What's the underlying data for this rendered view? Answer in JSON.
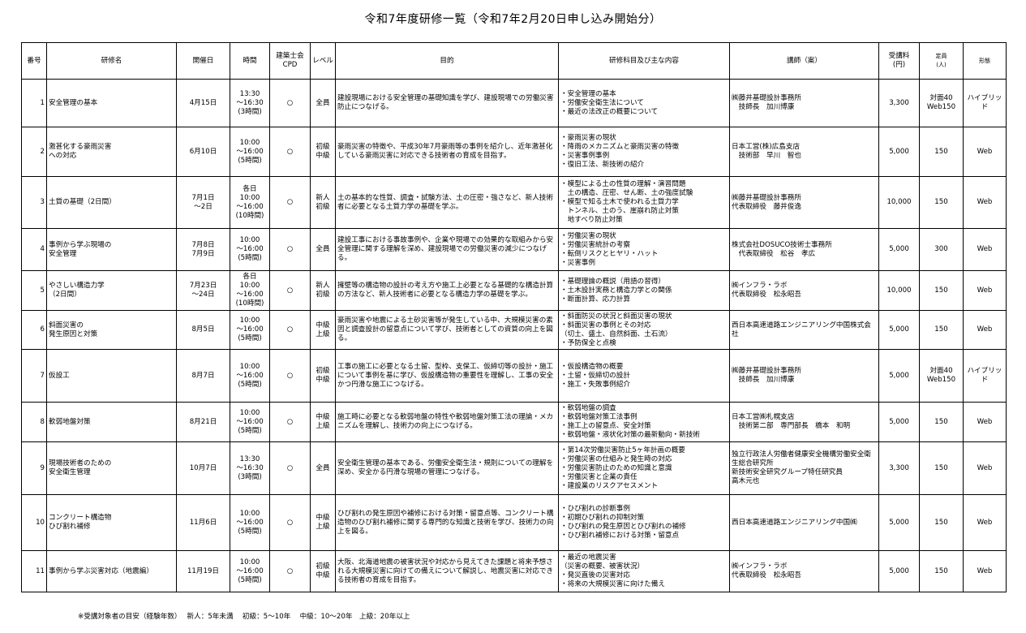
{
  "title": "令和7年度研修一覧（令和7年2月20日申し込み開始分）",
  "headers": {
    "no": "番号",
    "name": "研修名",
    "date": "開催日",
    "time": "時間",
    "cpd": "建築士会\nCPD",
    "level": "レベル",
    "purpose": "目的",
    "content": "研修科目及び主な内容",
    "lecturer": "講師（案）",
    "fee": "受講料\n(円)",
    "capacity": "定員\n(人)",
    "format": "形態"
  },
  "rows": [
    {
      "no": "1",
      "name": "安全管理の基本",
      "date": "4月15日",
      "time": "13:30\n～16:30\n(3時間)",
      "cpd": "○",
      "level": "全員",
      "purpose": "建設現場における安全管理の基礎知識を学び、建設現場での労働災害防止につなげる。",
      "content": "・安全管理の基本\n・労働安全衛生法について\n・最近の法改正の概要について",
      "lecturer": "㈱藤井基礎設計事務所\n　技師長　加川博康",
      "fee": "3,300",
      "capacity": "対面40\nWeb150",
      "format": "ハイブリッド"
    },
    {
      "no": "2",
      "name": "激甚化する豪雨災害\nへの対応",
      "date": "6月10日",
      "time": "10:00\n～16:00\n(5時間)",
      "cpd": "○",
      "level": "初級\n中級",
      "purpose": "豪雨災害の特徴や、平成30年7月豪雨等の事例を紹介し、近年激甚化している豪雨災害に対応できる技術者の育成を目指す。",
      "content": "・豪雨災害の現状\n・降雨のメカニズムと豪雨災害の特徴\n・災害事例事例\n・復旧工法、新技術の紹介",
      "lecturer": "日本工営(株)広島支店\n　技術部　早川　智也",
      "fee": "5,000",
      "capacity": "150",
      "format": "Web"
    },
    {
      "no": "3",
      "name": "土質の基礎（2日間）",
      "date": "7月1日\n～2日",
      "time": "各日\n10:00\n～16:00\n(10時間)",
      "cpd": "○",
      "level": "新人\n初級",
      "purpose": "土の基本的な性質、調査・試験方法、土の圧密・強さなど、新人技術者に必要となる土質力学の基礎を学ぶ。",
      "content": "・模型による土の性質の理解・演習問題\n　土の構造、圧密、せん断、土の強度試験\n・模型で知る土木で使われる土質力学\n　トンネル、土のう、崖崩れ防止対策\n　地すべり防止対策",
      "lecturer": "㈱藤井基礎設計事務所\n代表取締役　藤井俊逸",
      "fee": "10,000",
      "capacity": "150",
      "format": "Web"
    },
    {
      "no": "4",
      "name": "事例から学ぶ現場の\n安全管理",
      "date": "7月8日\n7月9日",
      "time": "10:00\n～16:00\n(5時間)",
      "cpd": "○",
      "level": "全員",
      "purpose": "建設工事における事故事例や、企業や現場での効果的な取組みから安全管理に関する理解を深め、建設現場での労働災害の減少につなげる。",
      "content": "・労働災害の現状\n・労働災害統計の考察\n・転倒リスクとヒヤリ・ハット\n・災害事例",
      "lecturer": "株式会社DOSUCO技術士事務所\n　代表取締役　松谷　孝広",
      "fee": "5,000",
      "capacity": "300",
      "format": "Web"
    },
    {
      "no": "5",
      "name": "やさしい構造力学\n（2日間）",
      "date": "7月23日\n～24日",
      "time": "各日\n10:00\n～16:00\n(10時間)",
      "cpd": "○",
      "level": "新人\n初級",
      "purpose": "擁壁等の構造物の設計の考え方や施工上必要となる基礎的な構造計算の方法など、新人技術者に必要となる構造力学の基礎を学ぶ。",
      "content": "・基礎理論の概説（用語の習得）\n・土木設計実務と構造力学との関係\n・断面計算、応力計算",
      "lecturer": "㈱インフラ・ラボ\n代表取締役　松永昭吾",
      "fee": "10,000",
      "capacity": "150",
      "format": "Web"
    },
    {
      "no": "6",
      "name": "斜面災害の\n発生原因と対策",
      "date": "8月5日",
      "time": "10:00\n～16:00\n(5時間)",
      "cpd": "○",
      "level": "中級\n上級",
      "purpose": "豪雨災害や地震による土砂災害等が発生している中、大規模災害の素因と調査設計の留意点について学び、技術者としての資質の向上を図る。",
      "content": "・斜面防災の状況と斜面災害の現状\n・斜面災害の事例とその対応\n（切土、盛土、自然斜面、土石流）\n・予防保全と点検",
      "lecturer": "西日本高速道路エンジニアリング中国株式会社",
      "fee": "5,000",
      "capacity": "150",
      "format": "Web"
    },
    {
      "no": "7",
      "name": "仮設工",
      "date": "8月7日",
      "time": "10:00\n～16:00\n(5時間)",
      "cpd": "○",
      "level": "初級\n中級",
      "purpose": "工事の施工に必要となる土留、型枠、支保工、仮締切等の設計・施工について事例を基に学び、仮設構造物の重要性を理解し、工事の安全かつ円滑な施工につなげる。",
      "content": "・仮設構造物の概要\n・土留・仮締切の設計\n・施工・失敗事例紹介",
      "lecturer": "㈱藤井基礎設計事務所\n　技師長　加川博康",
      "fee": "5,000",
      "capacity": "対面40\nWeb150",
      "format": "ハイブリッド"
    },
    {
      "no": "8",
      "name": "軟弱地盤対策",
      "date": "8月21日",
      "time": "10:00\n～16:00\n(5時間)",
      "cpd": "○",
      "level": "中級\n上級",
      "purpose": "施工時に必要となる軟弱地盤の特性や軟弱地盤対策工法の理論・メカニズムを理解し、技術力の向上につなげる。",
      "content": "・軟弱地盤の調査\n・軟弱地盤対策工法事例\n・施工上の留意点、安全対策\n・軟弱地盤・液状化対策の最新動向・新技術",
      "lecturer": "日本工営㈱札幌支店\n　技術第二部　専門部長　橋本　和明",
      "fee": "5,000",
      "capacity": "150",
      "format": "Web"
    },
    {
      "no": "9",
      "name": "現場技術者のための\n安全衛生管理",
      "date": "10月7日",
      "time": "13:30\n～16:30\n(3時間)",
      "cpd": "○",
      "level": "全員",
      "purpose": "安全衛生管理の基本である、労働安全衛生法・規則についての理解を深め、安全かる円滑な現場の管理につなげる。",
      "content": "・第14次労働災害防止5ヶ年計画の概要\n・労働災害の仕組みと発生時の対応\n・労働災害防止のための知識と意識\n・労働災害と企業の責任\n・建設業のリスクアセスメント",
      "lecturer": "独立行政法人労働者健康安全機構労働安全衛生総合研究所\n新技術安全研究グループ特任研究員\n高木元也",
      "fee": "3,300",
      "capacity": "150",
      "format": "Web"
    },
    {
      "no": "10",
      "name": "コンクリート構造物\nひび割れ補修",
      "date": "11月6日",
      "time": "10:00\n～16:00\n(5時間)",
      "cpd": "○",
      "level": "中級\n上級",
      "purpose": "ひび割れの発生原因や補修における対策・留意点等、コンクリート構造物のひび割れ補修に関する専門的な知識と技術を学び、技術力の向上を図る。",
      "content": "・ひび割れの診断事例\n・初期ひび割れの抑制対策\n・ひび割れの発生原因とひび割れの補修\n・ひび割れ補修における対策・留意点",
      "lecturer": "西日本高速道路エンジニアリング中国㈱",
      "fee": "5,000",
      "capacity": "150",
      "format": "Web"
    },
    {
      "no": "11",
      "name": "事例から学ぶ災害対応（地震編）",
      "date": "11月19日",
      "time": "10:00\n～16:00\n(5時間)",
      "cpd": "○",
      "level": "初級\n中級",
      "purpose": "大阪、北海道地震の被害状況や対応から見えてきた課題と将来予想される大規模災害に向けての備えについて解説し、地震災害に対応できる技術者の育成を目指す。",
      "content": "・最近の地震災害\n（災害の概要、被害状況）\n・発災直後の災害対応\n・将来の大規模災害に向けた備え",
      "lecturer": "㈱インフラ・ラボ\n代表取締役　松永昭吾",
      "fee": "5,000",
      "capacity": "150",
      "format": "Web"
    }
  ],
  "footer": "※受講対象者の目安（経験年数）　 新人：5年未満　 初級：5～10年　 中級：10～20年　上級：20年以上"
}
